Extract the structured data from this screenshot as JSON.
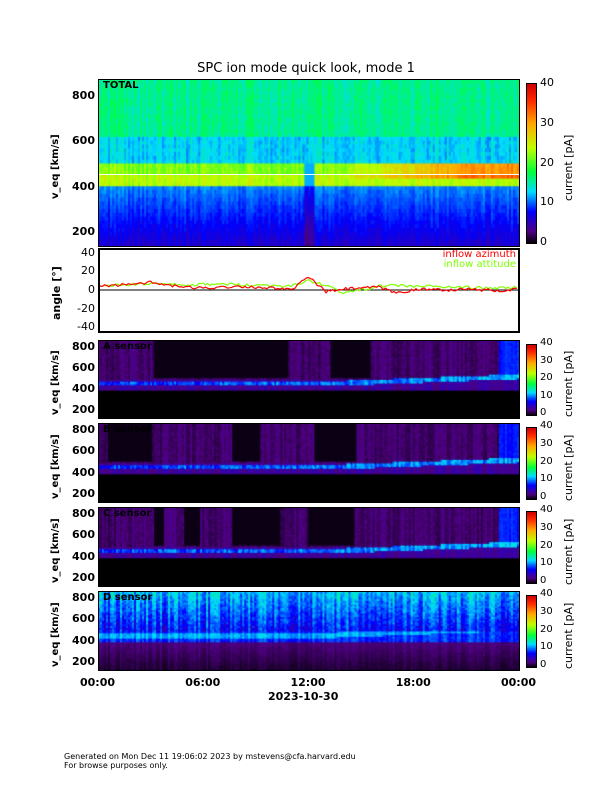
{
  "chart_data": {
    "type": "heatmap",
    "title": "SPC ion mode quick look, mode 1",
    "xlabel": "2023-10-30",
    "x_ticks": [
      "00:00",
      "06:00",
      "12:00",
      "18:00",
      "00:00"
    ],
    "xlim_hours": [
      0,
      24
    ],
    "panels": [
      {
        "id": "total",
        "label": "TOTAL",
        "ylabel": "v_eq [km/s]",
        "ylim": [
          140,
          875
        ],
        "y_ticks": [
          200,
          400,
          600,
          800
        ],
        "colorbar": {
          "label": "current [pA]",
          "range": [
            0,
            40
          ],
          "ticks": [
            0,
            10,
            20,
            30,
            40
          ]
        }
      },
      {
        "id": "angle",
        "type": "line",
        "ylabel": "angle [°]",
        "ylim": [
          -45,
          45
        ],
        "y_ticks": [
          -40,
          -20,
          0,
          20,
          40
        ],
        "series": [
          {
            "name": "inflow azimuth",
            "color": "#ff0000",
            "x_hours": [
              0,
              1,
              2,
              3,
              4,
              5,
              6,
              7,
              8,
              9,
              10,
              11,
              12,
              13,
              14,
              15,
              16,
              17,
              18,
              19,
              20,
              21,
              22,
              23,
              24
            ],
            "values": [
              4,
              5,
              7,
              8,
              5,
              3,
              2,
              3,
              4,
              3,
              2,
              0,
              14,
              -2,
              1,
              2,
              3,
              -3,
              0,
              1,
              0,
              1,
              0,
              -1,
              1
            ]
          },
          {
            "name": "inflow attitude",
            "color": "#7fff00",
            "x_hours": [
              0,
              1,
              2,
              3,
              4,
              5,
              6,
              7,
              8,
              9,
              10,
              11,
              12,
              13,
              14,
              15,
              16,
              17,
              18,
              19,
              20,
              21,
              22,
              23,
              24
            ],
            "values": [
              4,
              5,
              6,
              7,
              6,
              5,
              6,
              6,
              6,
              5,
              5,
              4,
              10,
              5,
              -3,
              0,
              4,
              5,
              4,
              4,
              3,
              3,
              2,
              2,
              3
            ]
          }
        ]
      },
      {
        "id": "a",
        "label": "A sensor",
        "ylabel": "v_eq [km/s]",
        "ylim": [
          125,
          867
        ],
        "y_ticks": [
          200,
          400,
          600,
          800
        ],
        "colorbar": {
          "label": "current [pA]",
          "range": [
            0,
            40
          ],
          "ticks": [
            0,
            10,
            20,
            30,
            40
          ]
        }
      },
      {
        "id": "b",
        "label": "B sensor",
        "ylabel": "v_eq [km/s]",
        "ylim": [
          125,
          867
        ],
        "y_ticks": [
          200,
          400,
          600,
          800
        ],
        "colorbar": {
          "label": "current [pA]",
          "range": [
            0,
            40
          ],
          "ticks": [
            0,
            10,
            20,
            30,
            40
          ]
        }
      },
      {
        "id": "c",
        "label": "C sensor",
        "ylabel": "v_eq [km/s]",
        "ylim": [
          125,
          867
        ],
        "y_ticks": [
          200,
          400,
          600,
          800
        ],
        "colorbar": {
          "label": "current [pA]",
          "range": [
            0,
            40
          ],
          "ticks": [
            0,
            10,
            20,
            30,
            40
          ]
        }
      },
      {
        "id": "d",
        "label": "D sensor",
        "ylabel": "v_eq [km/s]",
        "ylim": [
          125,
          867
        ],
        "y_ticks": [
          200,
          400,
          600,
          800
        ],
        "colorbar": {
          "label": "current [pA]",
          "range": [
            0,
            40
          ],
          "ticks": [
            0,
            10,
            20,
            30,
            40
          ]
        }
      }
    ]
  },
  "footer": {
    "line1": "Generated on Mon Dec 11 19:06:02 2023 by mstevens@cfa.harvard.edu",
    "line2": "For browse purposes only."
  }
}
